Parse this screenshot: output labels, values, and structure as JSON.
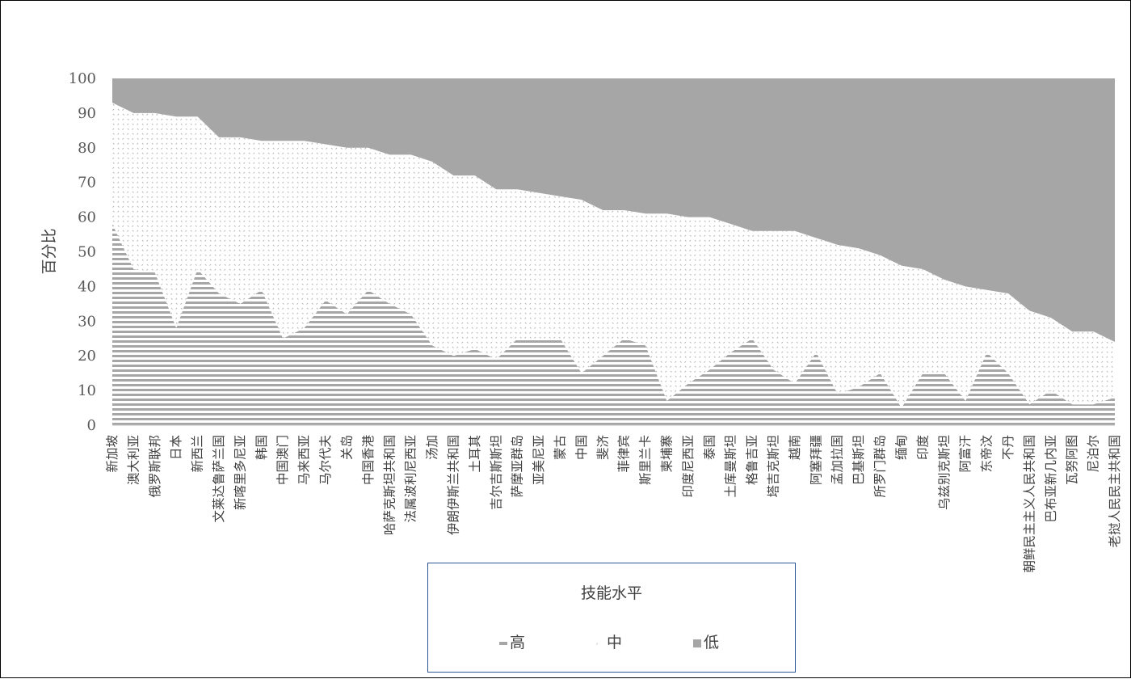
{
  "chart_data": {
    "type": "area",
    "stacked": true,
    "ylabel": "百分比",
    "xlabel": "",
    "ylim": [
      0,
      100
    ],
    "yticks": [
      "0",
      "10",
      "20",
      "30",
      "40",
      "50",
      "60",
      "70",
      "80",
      "90",
      "100"
    ],
    "grid": false,
    "legend_position": "bottom",
    "legend_title": "技能水平",
    "categories": [
      "新加坡",
      "澳大利亚",
      "俄罗斯联邦",
      "日本",
      "新西兰",
      "文莱达鲁萨兰国",
      "新喀里多尼亚",
      "韩国",
      "中国澳门",
      "马来西亚",
      "马尔代夫",
      "关岛",
      "中国香港",
      "哈萨克斯坦共和国",
      "法属波利尼西亚",
      "汤加",
      "伊朗伊斯兰共和国",
      "土耳其",
      "吉尔吉斯斯坦",
      "萨摩亚群岛",
      "亚美尼亚",
      "蒙古",
      "中国",
      "斐济",
      "菲律宾",
      "斯里兰卡",
      "柬埔寨",
      "印度尼西亚",
      "泰国",
      "土库曼斯坦",
      "格鲁吉亚",
      "塔吉克斯坦",
      "越南",
      "阿塞拜疆",
      "孟加拉国",
      "巴基斯坦",
      "所罗门群岛",
      "缅甸",
      "印度",
      "乌兹别克斯坦",
      "阿富汗",
      "东帝汶",
      "不丹",
      "朝鲜民主主义人民共和国",
      "巴布亚新几内亚",
      "瓦努阿图",
      "尼泊尔",
      "老挝人民民主共和国"
    ],
    "series": [
      {
        "name": "高",
        "values": [
          58,
          45,
          44,
          28,
          45,
          38,
          35,
          39,
          25,
          28,
          36,
          32,
          39,
          35,
          32,
          23,
          20,
          22,
          19,
          25,
          25,
          25,
          15,
          20,
          25,
          23,
          7,
          12,
          16,
          21,
          25,
          16,
          12,
          21,
          9,
          11,
          15,
          5,
          15,
          15,
          7,
          21,
          15,
          6,
          10,
          6,
          6,
          8
        ]
      },
      {
        "name": "中",
        "values": [
          35,
          45,
          46,
          61,
          44,
          45,
          48,
          43,
          57,
          54,
          45,
          48,
          41,
          43,
          46,
          53,
          52,
          50,
          49,
          43,
          42,
          41,
          50,
          42,
          37,
          38,
          54,
          48,
          44,
          37,
          31,
          40,
          44,
          33,
          43,
          40,
          34,
          41,
          30,
          27,
          33,
          18,
          23,
          27,
          21,
          21,
          21,
          16
        ]
      },
      {
        "name": "低",
        "values": [
          7,
          10,
          10,
          11,
          11,
          17,
          17,
          18,
          18,
          18,
          19,
          20,
          20,
          22,
          22,
          24,
          28,
          28,
          32,
          32,
          33,
          34,
          35,
          38,
          38,
          39,
          39,
          40,
          40,
          42,
          44,
          44,
          44,
          46,
          48,
          49,
          51,
          54,
          55,
          58,
          60,
          61,
          62,
          67,
          69,
          73,
          73,
          76
        ]
      }
    ],
    "colors": {
      "高": "#a6a6a6",
      "中": "#ffffff",
      "低": "#a6a6a6",
      "axis": "#bfbfbf",
      "text": "#404040"
    }
  }
}
